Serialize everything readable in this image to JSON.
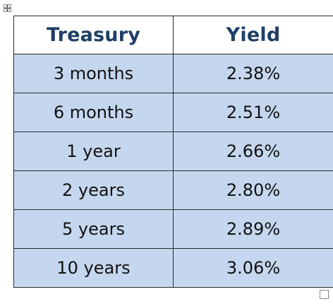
{
  "table": {
    "headers": [
      "Treasury",
      "Yield"
    ],
    "rows": [
      [
        "3 months",
        "2.38%"
      ],
      [
        "6 months",
        "2.51%"
      ],
      [
        "1 year",
        "2.66%"
      ],
      [
        "2 years",
        "2.80%"
      ],
      [
        "5 years",
        "2.89%"
      ],
      [
        "10 years",
        "3.06%"
      ]
    ]
  },
  "colors": {
    "header_text": "#1f3f66",
    "row_fill": "#c5d7ee",
    "border": "#2b2b2b"
  },
  "icons": {
    "move_handle": "table-move-icon",
    "resize_handle": "table-resize-icon"
  }
}
